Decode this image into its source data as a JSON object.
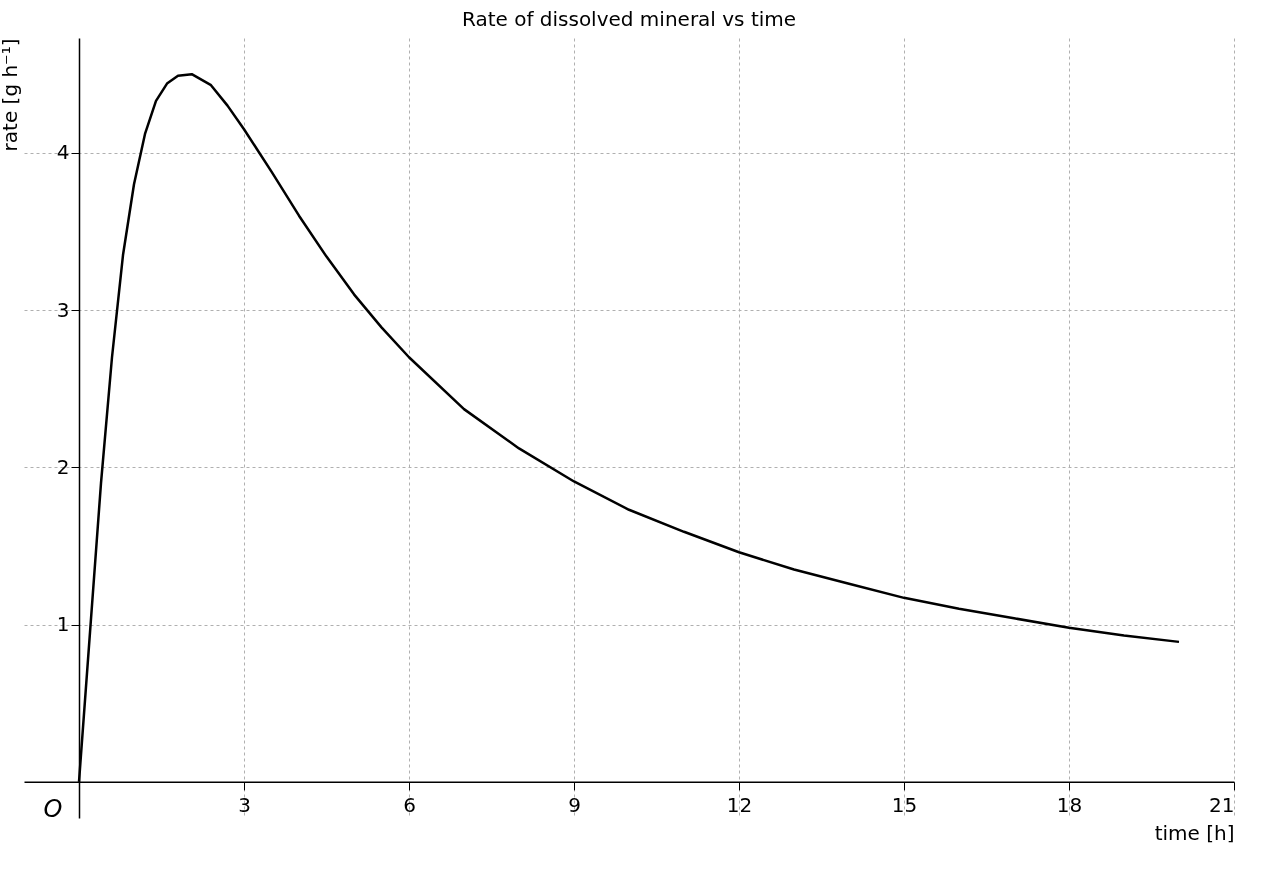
{
  "chart_data": {
    "type": "line",
    "title": "Rate of dissolved mineral vs time",
    "xlabel": "time [h]",
    "ylabel": "rate [g h⁻¹]",
    "x": [
      0,
      0.2,
      0.4,
      0.6,
      0.8,
      1.0,
      1.2,
      1.4,
      1.6,
      1.8,
      2.05,
      2.4,
      2.7,
      3,
      3.5,
      4,
      4.5,
      5,
      5.5,
      6,
      7,
      8,
      9,
      10,
      11,
      12,
      13,
      14,
      15,
      16,
      17,
      18,
      19,
      20
    ],
    "series": [
      {
        "color": "#000000",
        "values": [
          0,
          0.95,
          1.9,
          2.7,
          3.35,
          3.8,
          4.12,
          4.33,
          4.44,
          4.49,
          4.5,
          4.43,
          4.3,
          4.15,
          3.88,
          3.6,
          3.34,
          3.1,
          2.89,
          2.7,
          2.37,
          2.12,
          1.91,
          1.73,
          1.59,
          1.46,
          1.35,
          1.26,
          1.17,
          1.1,
          1.04,
          0.98,
          0.93,
          0.89
        ]
      }
    ],
    "xlim": [
      -1,
      21
    ],
    "ylim": [
      -0.23,
      4.73
    ],
    "xticks": [
      3,
      6,
      9,
      12,
      15,
      18,
      21
    ],
    "yticks": [
      1,
      2,
      3,
      4
    ],
    "grid": true,
    "line_style": "solid",
    "marker": "none",
    "annotations": [
      {
        "text": "O",
        "x": 0,
        "y": 0
      }
    ]
  }
}
